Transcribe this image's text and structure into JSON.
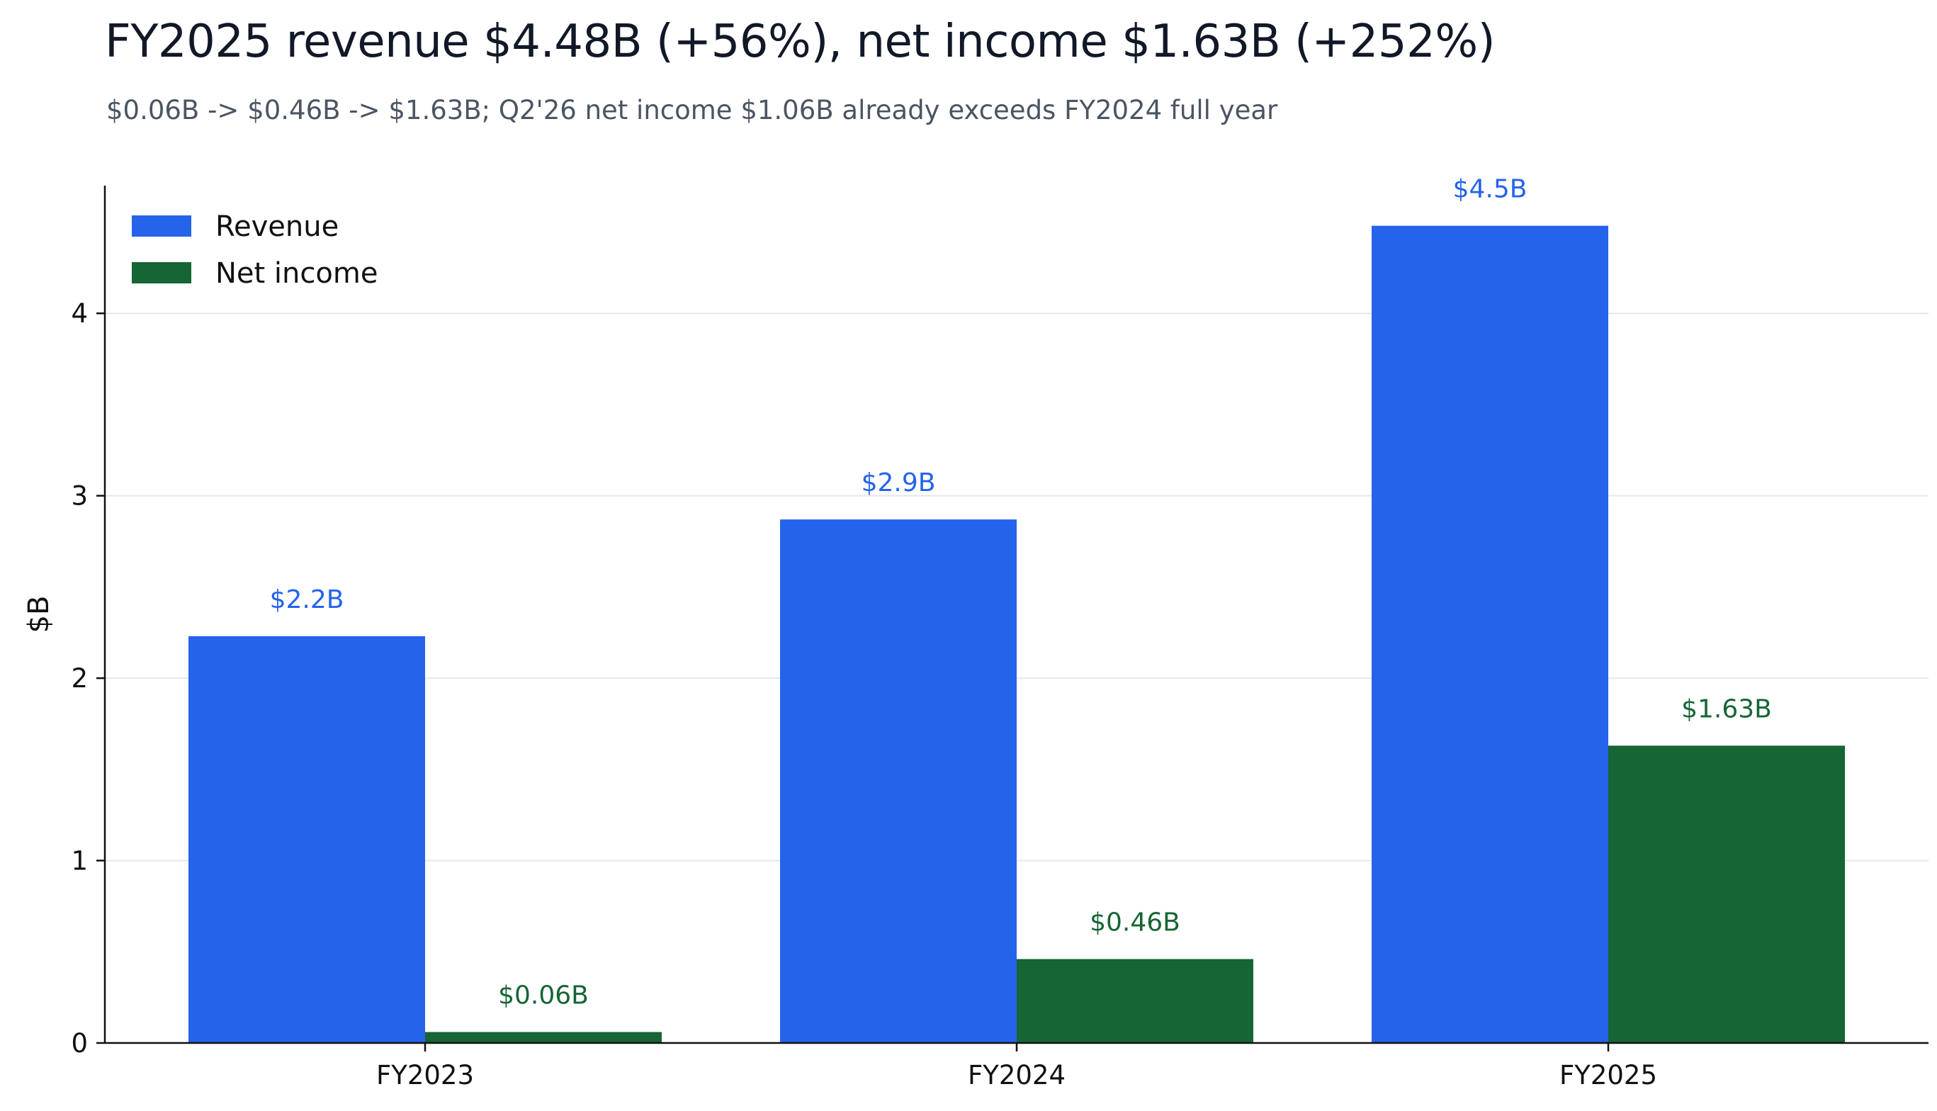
{
  "header": {
    "title": "FY2025 revenue $4.48B (+56%), net income $1.63B (+252%)",
    "subtitle": "$0.06B -> $0.46B -> $1.63B; Q2'26 net income $1.06B already exceeds FY2024 full year"
  },
  "chart_data": {
    "type": "bar",
    "categories": [
      "FY2023",
      "FY2024",
      "FY2025"
    ],
    "series": [
      {
        "name": "Revenue",
        "color": "#2563eb",
        "values": [
          2.23,
          2.87,
          4.48
        ],
        "labels": [
          "$2.2B",
          "$2.9B",
          "$4.5B"
        ]
      },
      {
        "name": "Net income",
        "color": "#166534",
        "values": [
          0.06,
          0.46,
          1.63
        ],
        "labels": [
          "$0.06B",
          "$0.46B",
          "$1.63B"
        ]
      }
    ],
    "ylabel": "$B",
    "xlabel": "",
    "ylim": [
      0,
      4.7
    ],
    "yticks": [
      0,
      1,
      2,
      3,
      4
    ],
    "grid": "horizontal",
    "legend_position": "top-left"
  }
}
